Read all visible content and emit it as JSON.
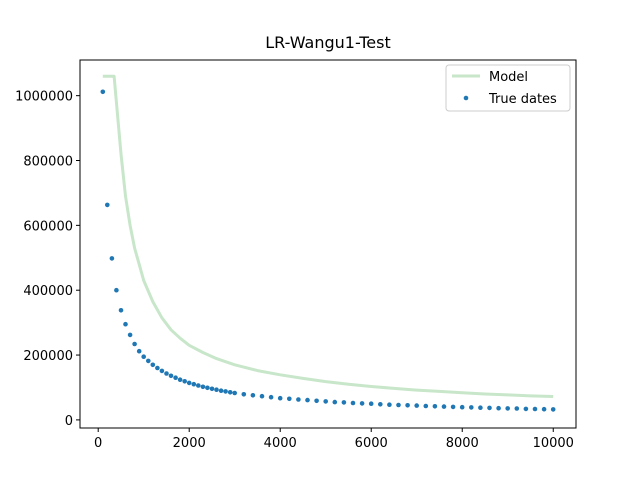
{
  "chart_data": {
    "type": "scatter",
    "title": "LR-Wangu1-Test",
    "xlabel": "",
    "ylabel": "",
    "xlim": [
      -400,
      10500
    ],
    "ylim": [
      -25000,
      1110000
    ],
    "x_ticks": [
      0,
      2000,
      4000,
      6000,
      8000,
      10000
    ],
    "y_ticks": [
      0,
      200000,
      400000,
      600000,
      800000,
      1000000
    ],
    "x_tick_labels": [
      "0",
      "2000",
      "4000",
      "6000",
      "8000",
      "10000"
    ],
    "y_tick_labels": [
      "0",
      "200000",
      "400000",
      "600000",
      "800000",
      "1000000"
    ],
    "grid": false,
    "legend": "upper right",
    "series": [
      {
        "name": "Model",
        "kind": "line",
        "color": "#c8e6c9",
        "points": [
          [
            100,
            1060000
          ],
          [
            350,
            1060000
          ],
          [
            400,
            980000
          ],
          [
            500,
            820000
          ],
          [
            600,
            690000
          ],
          [
            700,
            600000
          ],
          [
            800,
            530000
          ],
          [
            900,
            480000
          ],
          [
            1000,
            430000
          ],
          [
            1200,
            365000
          ],
          [
            1400,
            315000
          ],
          [
            1600,
            278000
          ],
          [
            1800,
            252000
          ],
          [
            2000,
            230000
          ],
          [
            2300,
            208000
          ],
          [
            2600,
            189000
          ],
          [
            3000,
            170000
          ],
          [
            3500,
            152000
          ],
          [
            4000,
            139000
          ],
          [
            4500,
            128000
          ],
          [
            5000,
            118000
          ],
          [
            5500,
            110000
          ],
          [
            6000,
            103000
          ],
          [
            6500,
            97000
          ],
          [
            7000,
            92000
          ],
          [
            7500,
            88000
          ],
          [
            8000,
            84000
          ],
          [
            8500,
            80000
          ],
          [
            9000,
            77000
          ],
          [
            9500,
            74000
          ],
          [
            10000,
            72000
          ]
        ]
      },
      {
        "name": "True dates",
        "kind": "scatter",
        "color": "#1f77b4",
        "points": [
          [
            100,
            1012000
          ],
          [
            200,
            663000
          ],
          [
            300,
            498000
          ],
          [
            400,
            400000
          ],
          [
            500,
            338000
          ],
          [
            600,
            295000
          ],
          [
            700,
            262000
          ],
          [
            800,
            234000
          ],
          [
            900,
            212000
          ],
          [
            1000,
            195000
          ],
          [
            1100,
            182000
          ],
          [
            1200,
            170000
          ],
          [
            1300,
            160000
          ],
          [
            1400,
            151000
          ],
          [
            1500,
            143000
          ],
          [
            1600,
            136000
          ],
          [
            1700,
            130000
          ],
          [
            1800,
            124000
          ],
          [
            1900,
            119000
          ],
          [
            2000,
            114000
          ],
          [
            2100,
            110000
          ],
          [
            2200,
            106000
          ],
          [
            2300,
            102000
          ],
          [
            2400,
            99000
          ],
          [
            2500,
            96000
          ],
          [
            2600,
            93000
          ],
          [
            2700,
            90000
          ],
          [
            2800,
            88000
          ],
          [
            2900,
            85000
          ],
          [
            3000,
            83000
          ],
          [
            3200,
            79000
          ],
          [
            3400,
            76000
          ],
          [
            3600,
            73000
          ],
          [
            3800,
            70000
          ],
          [
            4000,
            67000
          ],
          [
            4200,
            65000
          ],
          [
            4400,
            63000
          ],
          [
            4600,
            61000
          ],
          [
            4800,
            59000
          ],
          [
            5000,
            57000
          ],
          [
            5200,
            55000
          ],
          [
            5400,
            54000
          ],
          [
            5600,
            52000
          ],
          [
            5800,
            51000
          ],
          [
            6000,
            50000
          ],
          [
            6200,
            48000
          ],
          [
            6400,
            47000
          ],
          [
            6600,
            46000
          ],
          [
            6800,
            45000
          ],
          [
            7000,
            44000
          ],
          [
            7200,
            43000
          ],
          [
            7400,
            42000
          ],
          [
            7600,
            41000
          ],
          [
            7800,
            40000
          ],
          [
            8000,
            39000
          ],
          [
            8200,
            38500
          ],
          [
            8400,
            37500
          ],
          [
            8600,
            37000
          ],
          [
            8800,
            36000
          ],
          [
            9000,
            35500
          ],
          [
            9200,
            35000
          ],
          [
            9400,
            34000
          ],
          [
            9600,
            33500
          ],
          [
            9800,
            33000
          ],
          [
            10000,
            32500
          ]
        ]
      }
    ]
  }
}
